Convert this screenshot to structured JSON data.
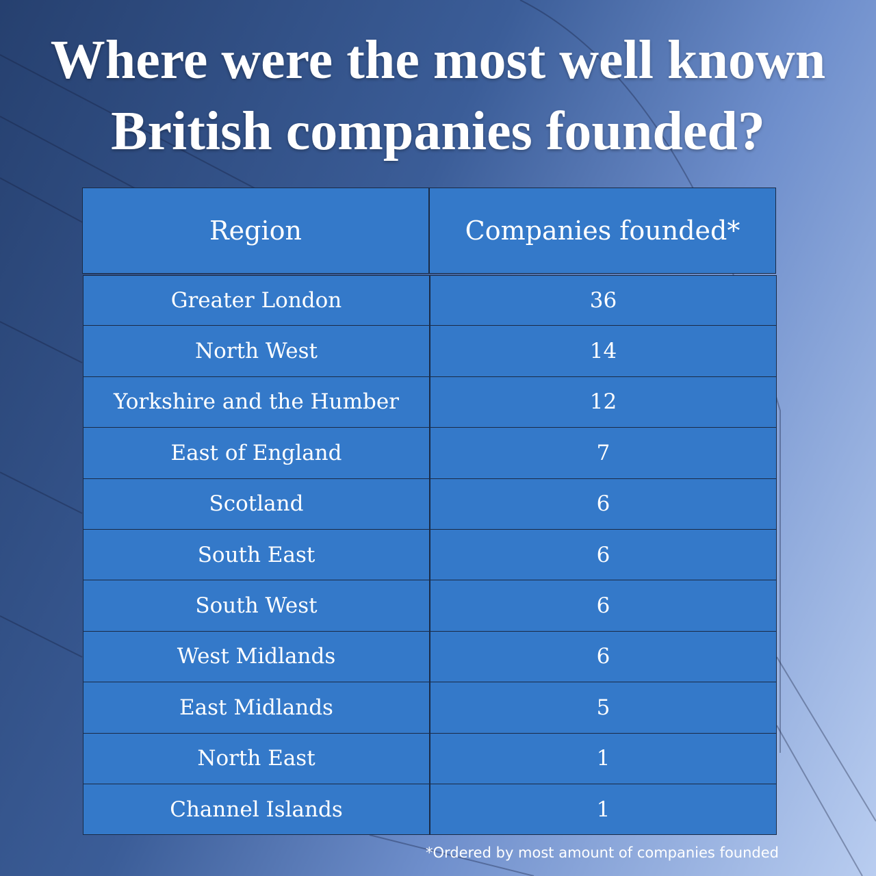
{
  "title": [
    "Where were the most well known",
    "British companies founded?"
  ],
  "table": {
    "header": [
      "Region",
      "Companies founded*"
    ],
    "rows": [
      [
        "Greater London",
        36
      ],
      [
        "North West",
        14
      ],
      [
        "Yorkshire and the Humber",
        12
      ],
      [
        "East of England",
        7
      ],
      [
        "Scotland",
        6
      ],
      [
        "South East",
        6
      ],
      [
        "South West",
        6
      ],
      [
        "West Midlands",
        6
      ],
      [
        "East Midlands",
        5
      ],
      [
        "North East",
        1
      ],
      [
        "Channel Islands",
        1
      ]
    ]
  },
  "footnote": "*Ordered by most amount of companies founded"
}
